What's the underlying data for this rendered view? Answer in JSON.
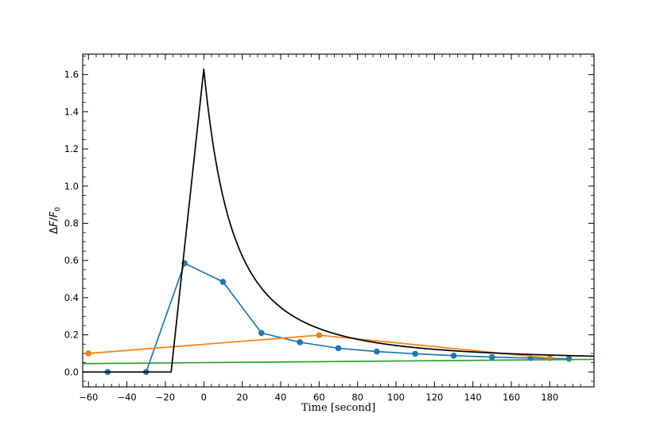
{
  "chart_data": {
    "type": "line",
    "title": "",
    "xlabel": "Time [second]",
    "ylabel_parts": {
      "delta": "Δ",
      "F": "F",
      "slash": "/",
      "F0": "F",
      "sub": "0"
    },
    "xlim": [
      -63,
      203
    ],
    "ylim": [
      -0.08,
      1.71
    ],
    "x_ticks": [
      -60,
      -40,
      -20,
      0,
      20,
      40,
      60,
      80,
      100,
      120,
      140,
      160,
      180
    ],
    "x_tick_labels": [
      "−60",
      "−40",
      "−20",
      "0",
      "20",
      "40",
      "60",
      "80",
      "100",
      "120",
      "140",
      "160",
      "180"
    ],
    "y_ticks": [
      0.0,
      0.2,
      0.4,
      0.6,
      0.8,
      1.0,
      1.2,
      1.4,
      1.6
    ],
    "y_tick_labels": [
      "0.0",
      "0.2",
      "0.4",
      "0.6",
      "0.8",
      "1.0",
      "1.2",
      "1.4",
      "1.6"
    ],
    "grid": false,
    "legend": "none",
    "series": [
      {
        "color": "#1f77b4",
        "markers": true,
        "x": [
          -50,
          -30,
          -10,
          10,
          30,
          50,
          70,
          90,
          110,
          130,
          150,
          170,
          190
        ],
        "y": [
          0.0,
          0.0,
          0.585,
          0.485,
          0.21,
          0.16,
          0.128,
          0.11,
          0.098,
          0.088,
          0.08,
          0.075,
          0.071
        ]
      },
      {
        "color": "#ff7f0e",
        "markers": true,
        "x": [
          -60,
          60,
          180
        ],
        "y": [
          0.1,
          0.198,
          0.075
        ]
      },
      {
        "color": "#2ca02c",
        "markers": false,
        "x": [
          -63,
          203
        ],
        "y": [
          0.045,
          0.068
        ]
      },
      {
        "color": "#000000",
        "markers": false,
        "model": {
          "baseline_end": -17,
          "peak_time": 0,
          "peak": 1.63,
          "decay_base": 0.059,
          "decay_amp": 1.571,
          "decay_tau": 30
        }
      }
    ]
  }
}
